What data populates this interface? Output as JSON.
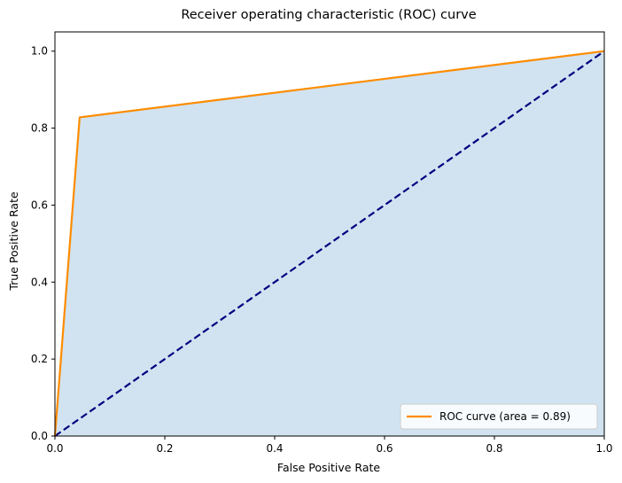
{
  "chart_data": {
    "type": "line",
    "title": "Receiver operating characteristic (ROC) curve",
    "xlabel": "False Positive Rate",
    "ylabel": "True Positive Rate",
    "xlim": [
      0.0,
      1.0
    ],
    "ylim": [
      0.0,
      1.05
    ],
    "xticks": [
      "0.0",
      "0.2",
      "0.4",
      "0.6",
      "0.8",
      "1.0"
    ],
    "yticks": [
      "0.0",
      "0.2",
      "0.4",
      "0.6",
      "0.8",
      "1.0"
    ],
    "grid": false,
    "legend_position": "lower-right",
    "series": [
      {
        "name": "ROC curve (area = 0.89)",
        "color": "#ff8c00",
        "x": [
          0.0,
          0.045,
          1.0
        ],
        "y": [
          0.0,
          0.828,
          1.0
        ],
        "fill_below": true,
        "fill_color": "#d1e3f0"
      },
      {
        "color": "#000080",
        "style": "dashed",
        "x": [
          0.0,
          1.0
        ],
        "y": [
          0.0,
          1.0
        ]
      }
    ]
  }
}
